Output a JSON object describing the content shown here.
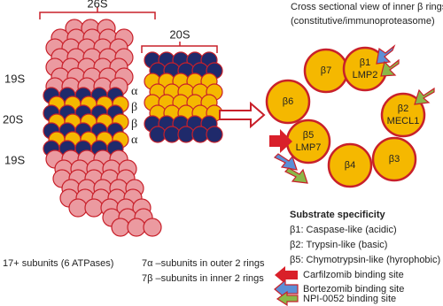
{
  "proteasome_26s": {
    "title": "26S",
    "labels": [
      "19S",
      "20S",
      "19S"
    ],
    "caption": "17+ subunits (6 ATPases)"
  },
  "core_20s": {
    "title": "20S",
    "ring_labels": [
      "α",
      "β",
      "β",
      "α"
    ],
    "captions": [
      "7α –subunits in outer 2 rings",
      "7β –subunits in inner 2 rings"
    ]
  },
  "cross_section": {
    "title_lines": [
      "Cross sectional view of inner β rings",
      "(constitutive/immunoproteasome)"
    ],
    "subunits": [
      {
        "name": "β6"
      },
      {
        "name": "β7"
      },
      {
        "name": "β1",
        "alt": "LMP2"
      },
      {
        "name": "β2",
        "alt": "MECL1"
      },
      {
        "name": "β3"
      },
      {
        "name": "β4"
      },
      {
        "name": "β5",
        "alt": "LMP7"
      }
    ]
  },
  "substrate": {
    "title": "Substrate specificity",
    "lines": [
      "β1: Caspase-like (acidic)",
      "β2: Trypsin-like (basic)",
      "β5: Chymotrypsin-like (hyrophobic)"
    ]
  },
  "legend": [
    {
      "label": "Carfilzomib binding site"
    },
    {
      "label": "Bortezomib binding site"
    },
    {
      "label": "NPI-0052 binding site"
    }
  ]
}
